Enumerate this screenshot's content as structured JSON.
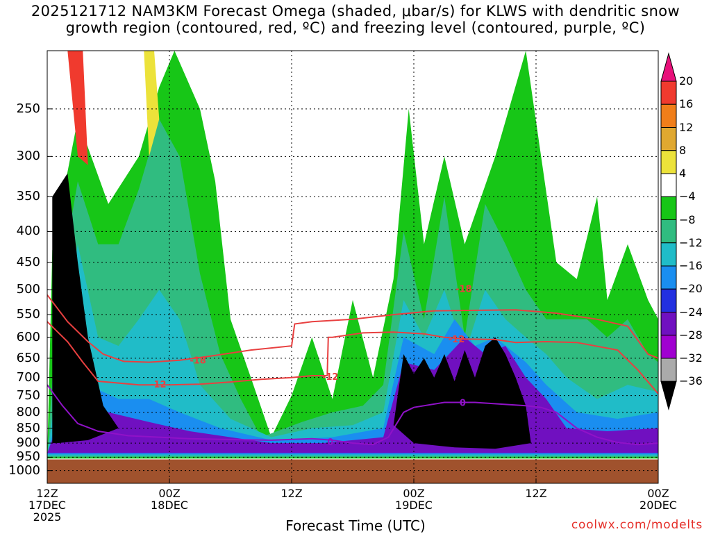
{
  "title_line_1": "2025121712 NAM3KM Forecast Omega (shaded, μbar/s) for KLWS with dendritic snow",
  "title_line_2": "growth region (contoured, red, ºC) and freezing level (contoured, purple, ºC)",
  "credit": "coolwx.com/modelts",
  "chart_data": {
    "type": "heatmap",
    "title": "2025121712 NAM3KM Forecast Omega (shaded, μbar/s) for KLWS with dendritic snow growth region (contoured, red, ºC) and freezing level (contoured, purple, ºC)",
    "xlabel": "Forecast Time (UTC)",
    "ylabel": "",
    "y_scale": "log",
    "y_reversed": true,
    "ylim": [
      1050,
      200
    ],
    "y_ticks": [
      "250",
      "300",
      "350",
      "400",
      "450",
      "500",
      "550",
      "600",
      "650",
      "700",
      "750",
      "800",
      "850",
      "900",
      "950",
      "1000"
    ],
    "y_tick_values": [
      250,
      300,
      350,
      400,
      450,
      500,
      550,
      600,
      650,
      700,
      750,
      800,
      850,
      900,
      950,
      1000
    ],
    "x_unit": "forecast hour",
    "xlim": [
      0,
      60
    ],
    "x_ticks": [
      {
        "hour": 0,
        "lines": [
          "12Z",
          "17DEC",
          "2025"
        ]
      },
      {
        "hour": 12,
        "lines": [
          "00Z",
          "18DEC"
        ]
      },
      {
        "hour": 24,
        "lines": [
          "12Z"
        ]
      },
      {
        "hour": 36,
        "lines": [
          "00Z",
          "19DEC"
        ]
      },
      {
        "hour": 48,
        "lines": [
          "12Z"
        ]
      },
      {
        "hour": 60,
        "lines": [
          "00Z",
          "20DEC"
        ]
      }
    ],
    "grid": true,
    "colorbar": {
      "unit": "μbar/s",
      "labels": [
        "20",
        "16",
        "12",
        "8",
        "4",
        "−4",
        "−8",
        "−12",
        "−16",
        "−20",
        "−24",
        "−28",
        "−32",
        "−36"
      ],
      "levels": [
        20,
        16,
        12,
        8,
        4,
        -4,
        -8,
        -12,
        -16,
        -20,
        -24,
        -28,
        -32,
        -36
      ],
      "colors": [
        "#e8107a",
        "#f03a2e",
        "#f07e1a",
        "#e0a830",
        "#ece23a",
        "#ffffff",
        "#17c617",
        "#30bc80",
        "#20bcc8",
        "#1a8ef0",
        "#2330e0",
        "#7010c0",
        "#a000d0",
        "#aaaaaa",
        "#000000"
      ]
    },
    "ground_color": "#a0522d",
    "contours": [
      {
        "name": "-18",
        "color": "#e84040",
        "label_positions": [
          [
            14.8,
            655
          ],
          [
            40.9,
            498
          ]
        ],
        "points": [
          [
            0,
            510
          ],
          [
            2,
            565
          ],
          [
            4,
            610
          ],
          [
            5.5,
            640
          ],
          [
            7.5,
            658
          ],
          [
            10,
            660
          ],
          [
            13,
            655
          ],
          [
            16,
            645
          ],
          [
            20,
            630
          ],
          [
            24,
            620
          ],
          [
            24.3,
            570
          ],
          [
            26,
            565
          ],
          [
            30,
            560
          ],
          [
            34,
            550
          ],
          [
            38,
            542
          ],
          [
            42,
            541
          ],
          [
            46,
            540
          ],
          [
            50,
            547
          ],
          [
            54,
            560
          ],
          [
            57,
            575
          ],
          [
            59,
            640
          ],
          [
            60,
            650
          ]
        ]
      },
      {
        "name": "-12",
        "color": "#e84040",
        "label_positions": [
          [
            10.9,
            718
          ],
          [
            27.8,
            697
          ],
          [
            40.2,
            604
          ]
        ],
        "points": [
          [
            0,
            565
          ],
          [
            2,
            610
          ],
          [
            3.5,
            660
          ],
          [
            5,
            710
          ],
          [
            7,
            715
          ],
          [
            9,
            720
          ],
          [
            12,
            720
          ],
          [
            15,
            718
          ],
          [
            18,
            712
          ],
          [
            21,
            705
          ],
          [
            24,
            700
          ],
          [
            26,
            695
          ],
          [
            27.5,
            695
          ],
          [
            27.6,
            600
          ],
          [
            28,
            600
          ],
          [
            31,
            590
          ],
          [
            34,
            588
          ],
          [
            37,
            592
          ],
          [
            39,
            600
          ],
          [
            41,
            604
          ],
          [
            44,
            605
          ],
          [
            46,
            612
          ],
          [
            49,
            610
          ],
          [
            52,
            612
          ],
          [
            56,
            630
          ],
          [
            58,
            680
          ],
          [
            60,
            745
          ]
        ]
      },
      {
        "name": "0",
        "color": "#9012c8",
        "label_positions": [
          [
            27.8,
            895
          ],
          [
            40.8,
            770
          ]
        ],
        "points": [
          [
            0,
            720
          ],
          [
            1.5,
            780
          ],
          [
            3,
            835
          ],
          [
            5,
            860
          ],
          [
            8,
            875
          ],
          [
            11,
            880
          ],
          [
            14,
            885
          ],
          [
            18,
            888
          ],
          [
            22,
            890
          ],
          [
            26,
            885
          ],
          [
            28,
            890
          ],
          [
            30,
            900
          ],
          [
            32,
            905
          ],
          [
            33.5,
            880
          ],
          [
            35,
            800
          ],
          [
            36,
            785
          ],
          [
            39,
            770
          ],
          [
            42,
            770
          ],
          [
            45,
            776
          ],
          [
            47,
            780
          ],
          [
            48.5,
            785
          ],
          [
            50,
            800
          ],
          [
            52,
            850
          ],
          [
            54,
            880
          ],
          [
            56,
            898
          ],
          [
            58,
            905
          ],
          [
            60,
            900
          ]
        ]
      }
    ],
    "shaded_regions": [
      {
        "value_range": [
          -8,
          -4
        ],
        "color": "#17c617",
        "description_free": true,
        "polygon": [
          [
            0.5,
            430
          ],
          [
            3,
            260
          ],
          [
            6,
            360
          ],
          [
            9,
            300
          ],
          [
            11,
            230
          ],
          [
            12.5,
            200
          ],
          [
            15,
            250
          ],
          [
            16.5,
            330
          ],
          [
            18,
            560
          ],
          [
            20,
            700
          ],
          [
            22,
            880
          ],
          [
            24,
            750
          ],
          [
            26,
            600
          ],
          [
            28,
            760
          ],
          [
            30,
            520
          ],
          [
            32,
            700
          ],
          [
            34,
            480
          ],
          [
            35.5,
            250
          ],
          [
            37,
            420
          ],
          [
            39,
            300
          ],
          [
            41,
            420
          ],
          [
            44,
            300
          ],
          [
            47,
            200
          ],
          [
            48.5,
            300
          ],
          [
            50,
            450
          ],
          [
            52,
            480
          ],
          [
            54,
            350
          ],
          [
            55,
            520
          ],
          [
            57,
            420
          ],
          [
            59,
            520
          ],
          [
            60,
            560
          ],
          [
            60,
            955
          ],
          [
            0,
            955
          ]
        ]
      },
      {
        "value_range": [
          -12,
          -8
        ],
        "color": "#30bc80",
        "polygon": [
          [
            1,
            520
          ],
          [
            3,
            330
          ],
          [
            5,
            420
          ],
          [
            7,
            420
          ],
          [
            9,
            340
          ],
          [
            11,
            260
          ],
          [
            13,
            300
          ],
          [
            15,
            470
          ],
          [
            17,
            640
          ],
          [
            19,
            760
          ],
          [
            21,
            880
          ],
          [
            25,
            830
          ],
          [
            28,
            800
          ],
          [
            31,
            780
          ],
          [
            33,
            720
          ],
          [
            35,
            400
          ],
          [
            37,
            560
          ],
          [
            39,
            350
          ],
          [
            41,
            600
          ],
          [
            43,
            360
          ],
          [
            45,
            420
          ],
          [
            47,
            500
          ],
          [
            49,
            560
          ],
          [
            51,
            560
          ],
          [
            53,
            560
          ],
          [
            55,
            600
          ],
          [
            57,
            560
          ],
          [
            59,
            640
          ],
          [
            60,
            660
          ],
          [
            60,
            950
          ],
          [
            0,
            950
          ]
        ]
      },
      {
        "value_range": [
          -16,
          -12
        ],
        "color": "#20bcc8",
        "polygon": [
          [
            1.5,
            600
          ],
          [
            3,
            420
          ],
          [
            5,
            600
          ],
          [
            7,
            620
          ],
          [
            9,
            560
          ],
          [
            11,
            500
          ],
          [
            13,
            560
          ],
          [
            15,
            720
          ],
          [
            18,
            820
          ],
          [
            22,
            880
          ],
          [
            26,
            850
          ],
          [
            30,
            840
          ],
          [
            33,
            800
          ],
          [
            35,
            520
          ],
          [
            37,
            600
          ],
          [
            39,
            500
          ],
          [
            41,
            640
          ],
          [
            43,
            500
          ],
          [
            45,
            560
          ],
          [
            47,
            600
          ],
          [
            49,
            640
          ],
          [
            51,
            700
          ],
          [
            54,
            760
          ],
          [
            57,
            720
          ],
          [
            60,
            740
          ],
          [
            60,
            945
          ],
          [
            0,
            945
          ]
        ]
      },
      {
        "value_range": [
          -20,
          -16
        ],
        "color": "#1a8ef0",
        "polygon": [
          [
            2,
            700
          ],
          [
            4,
            720
          ],
          [
            7,
            760
          ],
          [
            10,
            760
          ],
          [
            13,
            800
          ],
          [
            17,
            850
          ],
          [
            22,
            890
          ],
          [
            28,
            880
          ],
          [
            33,
            850
          ],
          [
            35,
            600
          ],
          [
            38,
            640
          ],
          [
            40,
            560
          ],
          [
            42,
            620
          ],
          [
            44,
            600
          ],
          [
            47,
            660
          ],
          [
            49,
            720
          ],
          [
            52,
            800
          ],
          [
            56,
            820
          ],
          [
            60,
            800
          ],
          [
            60,
            940
          ],
          [
            0,
            940
          ]
        ]
      },
      {
        "value_range": [
          -28,
          -20
        ],
        "color": "#7010c0",
        "polygon": [
          [
            2,
            760
          ],
          [
            6,
            800
          ],
          [
            10,
            830
          ],
          [
            14,
            860
          ],
          [
            18,
            880
          ],
          [
            22,
            900
          ],
          [
            27,
            900
          ],
          [
            33,
            880
          ],
          [
            35,
            660
          ],
          [
            38,
            680
          ],
          [
            41,
            600
          ],
          [
            43,
            640
          ],
          [
            45,
            620
          ],
          [
            47,
            700
          ],
          [
            49,
            760
          ],
          [
            51,
            850
          ],
          [
            55,
            860
          ],
          [
            60,
            850
          ],
          [
            60,
            935
          ],
          [
            0,
            935
          ]
        ]
      },
      {
        "value_range": [
          -36,
          -32
        ],
        "color": "#000000",
        "polygon": [
          [
            0.5,
            350
          ],
          [
            2,
            320
          ],
          [
            3,
            450
          ],
          [
            4,
            600
          ],
          [
            5.5,
            780
          ],
          [
            7,
            850
          ],
          [
            4,
            890
          ],
          [
            1,
            900
          ],
          [
            0.5,
            900
          ]
        ]
      },
      {
        "value_range": [
          -36,
          -32
        ],
        "color": "#000000",
        "polygon": [
          [
            34,
            840
          ],
          [
            35,
            640
          ],
          [
            36,
            690
          ],
          [
            37,
            650
          ],
          [
            38,
            700
          ],
          [
            39,
            640
          ],
          [
            40,
            710
          ],
          [
            41,
            630
          ],
          [
            42,
            700
          ],
          [
            43,
            620
          ],
          [
            44,
            600
          ],
          [
            45,
            640
          ],
          [
            46,
            700
          ],
          [
            47,
            780
          ],
          [
            47.5,
            900
          ],
          [
            44,
            920
          ],
          [
            40,
            915
          ],
          [
            36,
            900
          ]
        ]
      },
      {
        "value_range": [
          4,
          8
        ],
        "color": "#ece23a",
        "polygon": [
          [
            9.5,
            200
          ],
          [
            10.5,
            200
          ],
          [
            11,
            260
          ],
          [
            10,
            300
          ]
        ]
      },
      {
        "value_range": [
          12,
          20
        ],
        "color": "#f03a2e",
        "polygon": [
          [
            2,
            200
          ],
          [
            3.5,
            200
          ],
          [
            4,
            310
          ],
          [
            3,
            300
          ]
        ]
      }
    ]
  }
}
